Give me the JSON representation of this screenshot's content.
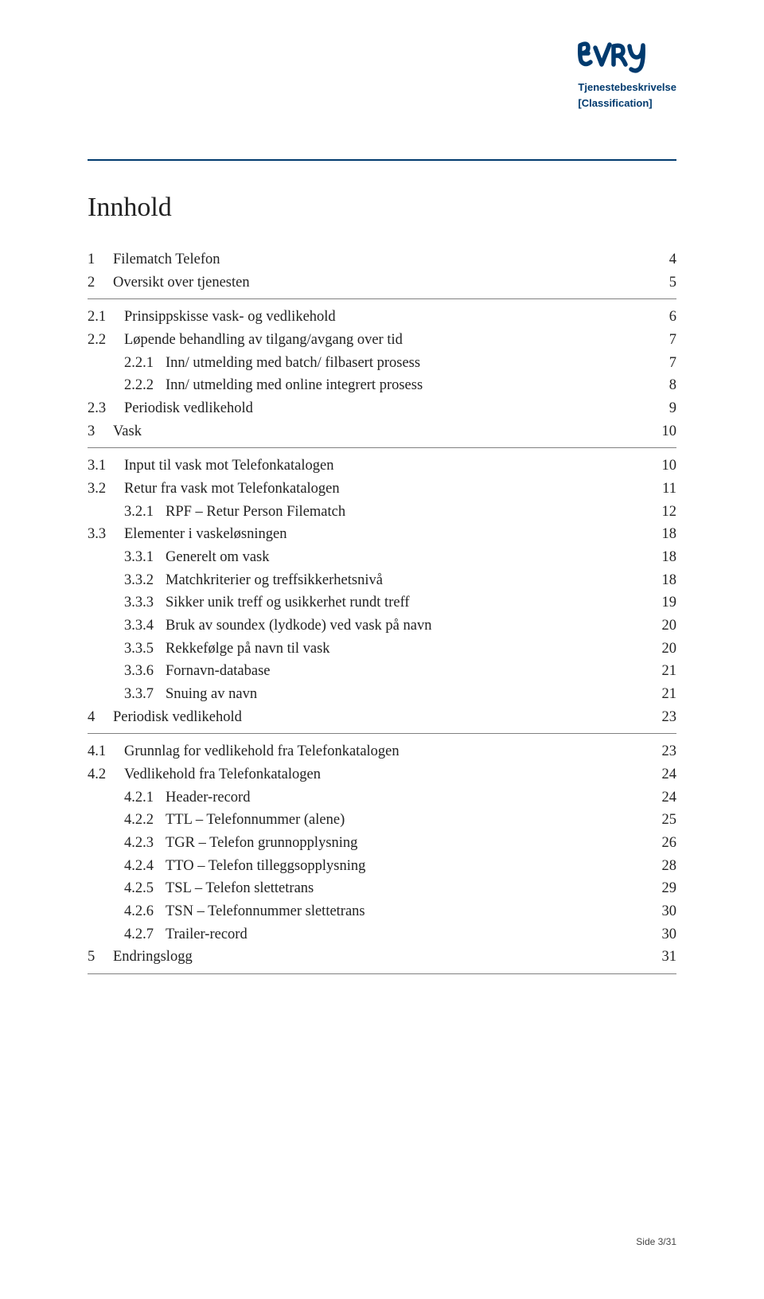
{
  "header": {
    "line1": "Tjenestebeskrivelse",
    "line2": "[Classification]",
    "logo_color": "#003a6e"
  },
  "title": "Innhold",
  "toc": [
    {
      "level": 1,
      "num": "1",
      "label": "Filematch Telefon",
      "page": "4"
    },
    {
      "level": 1,
      "num": "2",
      "label": "Oversikt over tjenesten",
      "page": "5",
      "sep_after": true
    },
    {
      "level": 2,
      "num": "2.1",
      "label": "Prinsippskisse vask- og vedlikehold",
      "page": "6"
    },
    {
      "level": 2,
      "num": "2.2",
      "label": "Løpende behandling av tilgang/avgang over tid",
      "page": "7"
    },
    {
      "level": 3,
      "num": "2.2.1",
      "label": "Inn/ utmelding med batch/ filbasert prosess",
      "page": "7"
    },
    {
      "level": 3,
      "num": "2.2.2",
      "label": "Inn/ utmelding med online integrert prosess",
      "page": "8"
    },
    {
      "level": 2,
      "num": "2.3",
      "label": "Periodisk vedlikehold",
      "page": "9"
    },
    {
      "level": 1,
      "num": "3",
      "label": "Vask",
      "page": "10",
      "sep_after": true
    },
    {
      "level": 2,
      "num": "3.1",
      "label": "Input til vask mot Telefonkatalogen",
      "page": "10"
    },
    {
      "level": 2,
      "num": "3.2",
      "label": "Retur fra vask mot Telefonkatalogen",
      "page": "11"
    },
    {
      "level": 3,
      "num": "3.2.1",
      "label": "RPF – Retur Person Filematch",
      "page": "12"
    },
    {
      "level": 2,
      "num": "3.3",
      "label": "Elementer i vaskeløsningen",
      "page": "18"
    },
    {
      "level": 3,
      "num": "3.3.1",
      "label": "Generelt om vask",
      "page": "18"
    },
    {
      "level": 3,
      "num": "3.3.2",
      "label": "Matchkriterier og treffsikkerhetsnivå",
      "page": "18"
    },
    {
      "level": 3,
      "num": "3.3.3",
      "label": "Sikker unik treff og usikkerhet rundt treff",
      "page": "19"
    },
    {
      "level": 3,
      "num": "3.3.4",
      "label": "Bruk av soundex (lydkode) ved vask på navn",
      "page": "20"
    },
    {
      "level": 3,
      "num": "3.3.5",
      "label": "Rekkefølge på navn til vask",
      "page": "20"
    },
    {
      "level": 3,
      "num": "3.3.6",
      "label": "Fornavn-database",
      "page": "21"
    },
    {
      "level": 3,
      "num": "3.3.7",
      "label": "Snuing av navn",
      "page": "21"
    },
    {
      "level": 1,
      "num": "4",
      "label": "Periodisk vedlikehold",
      "page": "23",
      "sep_after": true
    },
    {
      "level": 2,
      "num": "4.1",
      "label": "Grunnlag for vedlikehold fra Telefonkatalogen",
      "page": "23"
    },
    {
      "level": 2,
      "num": "4.2",
      "label": "Vedlikehold fra Telefonkatalogen",
      "page": "24"
    },
    {
      "level": 3,
      "num": "4.2.1",
      "label": "Header-record",
      "page": "24"
    },
    {
      "level": 3,
      "num": "4.2.2",
      "label": "TTL – Telefonnummer (alene)",
      "page": "25"
    },
    {
      "level": 3,
      "num": "4.2.3",
      "label": "TGR – Telefon grunnopplysning",
      "page": "26"
    },
    {
      "level": 3,
      "num": "4.2.4",
      "label": "TTO – Telefon tilleggsopplysning",
      "page": "28"
    },
    {
      "level": 3,
      "num": "4.2.5",
      "label": "TSL – Telefon slettetrans",
      "page": "29"
    },
    {
      "level": 3,
      "num": "4.2.6",
      "label": "TSN – Telefonnummer slettetrans",
      "page": "30"
    },
    {
      "level": 3,
      "num": "4.2.7",
      "label": "Trailer-record",
      "page": "30"
    },
    {
      "level": 1,
      "num": "5",
      "label": "Endringslogg",
      "page": "31",
      "sep_after": true
    }
  ],
  "footer": "Side 3/31",
  "colors": {
    "brand": "#003a6e",
    "text": "#222222",
    "sep": "#808080",
    "bg": "#ffffff"
  }
}
